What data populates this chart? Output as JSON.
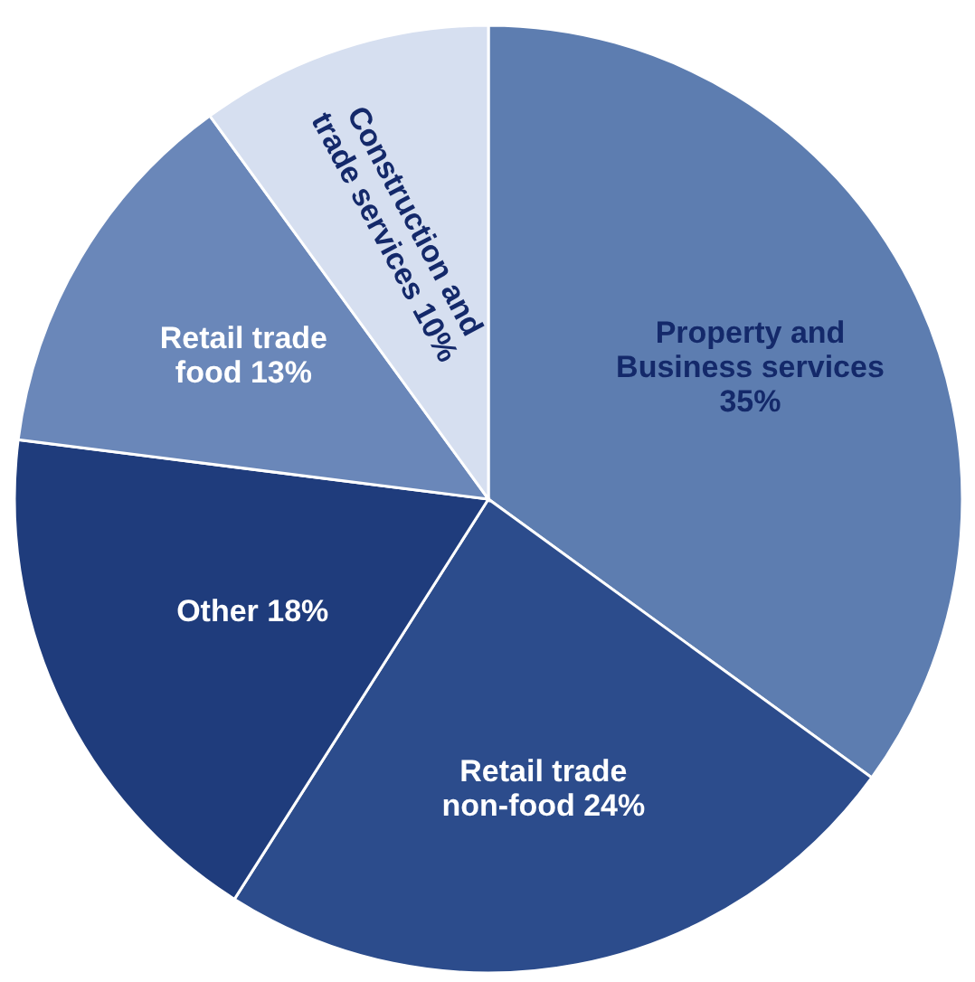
{
  "chart_data": {
    "type": "pie",
    "categories": [
      "Property and Business services",
      "Retail trade non-food",
      "Other",
      "Retail trade food",
      "Construction and trade services"
    ],
    "values": [
      35,
      24,
      18,
      13,
      10
    ],
    "value_labels": [
      "35%",
      "24%",
      "18%",
      "13%",
      "10%"
    ],
    "colors": [
      "#5d7db0",
      "#2c4c8c",
      "#1f3c7c",
      "#6a87b9",
      "#d6dff0"
    ]
  }
}
